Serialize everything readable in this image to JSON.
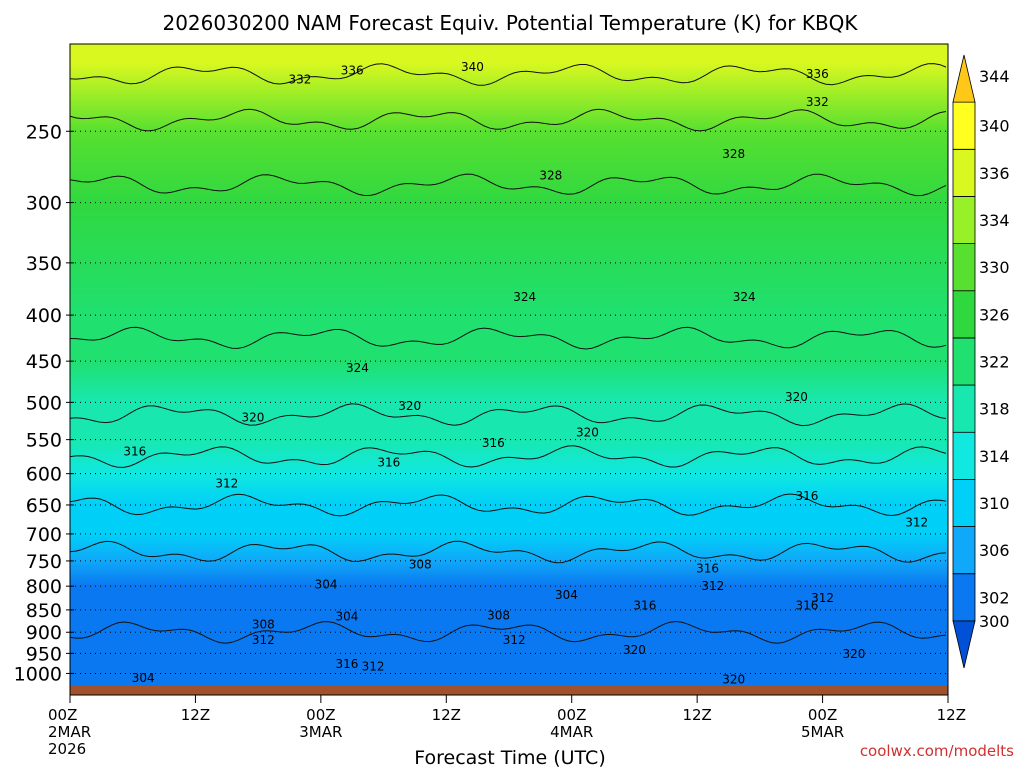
{
  "chart_data": {
    "type": "heatmap",
    "title": "2026030200 NAM Forecast Equiv. Potential Temperature (K) for KBQK",
    "xlabel": "Forecast Time (UTC)",
    "ylabel": "",
    "credit": "coolwx.com/modelts",
    "x_ticks": [
      {
        "hour": 0,
        "line1": "00Z",
        "line2": "2MAR",
        "line3": "2026"
      },
      {
        "hour": 12,
        "line1": "12Z",
        "line2": "",
        "line3": ""
      },
      {
        "hour": 24,
        "line1": "00Z",
        "line2": "3MAR",
        "line3": ""
      },
      {
        "hour": 36,
        "line1": "12Z",
        "line2": "",
        "line3": ""
      },
      {
        "hour": 48,
        "line1": "00Z",
        "line2": "4MAR",
        "line3": ""
      },
      {
        "hour": 60,
        "line1": "12Z",
        "line2": "",
        "line3": ""
      },
      {
        "hour": 72,
        "line1": "00Z",
        "line2": "5MAR",
        "line3": ""
      },
      {
        "hour": 84,
        "line1": "12Z",
        "line2": "",
        "line3": ""
      }
    ],
    "x_range_hours": [
      0,
      84
    ],
    "pressure_levels": [
      250,
      300,
      350,
      400,
      450,
      500,
      550,
      600,
      650,
      700,
      750,
      800,
      850,
      900,
      950,
      1000
    ],
    "y_range_hpa": [
      200,
      1030
    ],
    "y_scale": "log",
    "colorbar": {
      "labels": [
        300,
        302,
        306,
        310,
        314,
        318,
        322,
        326,
        330,
        334,
        336,
        340,
        344
      ],
      "colors": [
        "#0050d8",
        "#0a78f0",
        "#10a8f8",
        "#00d0f8",
        "#10e8e0",
        "#18e8b0",
        "#20e070",
        "#30d840",
        "#58e030",
        "#98f028",
        "#d8f820",
        "#ffff20",
        "#ffc818"
      ]
    },
    "field_profile_by_level": [
      {
        "hpa": 210,
        "theta_e": 337
      },
      {
        "hpa": 250,
        "theta_e": 331
      },
      {
        "hpa": 300,
        "theta_e": 327
      },
      {
        "hpa": 400,
        "theta_e": 325
      },
      {
        "hpa": 450,
        "theta_e": 323
      },
      {
        "hpa": 500,
        "theta_e": 321
      },
      {
        "hpa": 550,
        "theta_e": 318
      },
      {
        "hpa": 600,
        "theta_e": 314
      },
      {
        "hpa": 650,
        "theta_e": 312
      },
      {
        "hpa": 700,
        "theta_e": 310
      },
      {
        "hpa": 750,
        "theta_e": 307
      },
      {
        "hpa": 800,
        "theta_e": 305
      },
      {
        "hpa": 850,
        "theta_e": 305
      },
      {
        "hpa": 900,
        "theta_e": 304
      },
      {
        "hpa": 950,
        "theta_e": 304
      },
      {
        "hpa": 1000,
        "theta_e": 304
      }
    ],
    "contour_levels": [
      304,
      308,
      312,
      316,
      320,
      324,
      328,
      332,
      336,
      340
    ],
    "contour_labels": [
      {
        "text": "340",
        "hour": 38.5,
        "hpa": 212
      },
      {
        "text": "336",
        "hour": 27,
        "hpa": 214
      },
      {
        "text": "336",
        "hour": 71.5,
        "hpa": 216
      },
      {
        "text": "332",
        "hour": 22,
        "hpa": 219
      },
      {
        "text": "332",
        "hour": 71.5,
        "hpa": 232
      },
      {
        "text": "328",
        "hour": 46,
        "hpa": 280
      },
      {
        "text": "328",
        "hour": 63.5,
        "hpa": 265
      },
      {
        "text": "324",
        "hour": 43.5,
        "hpa": 382
      },
      {
        "text": "324",
        "hour": 64.5,
        "hpa": 382
      },
      {
        "text": "324",
        "hour": 27.5,
        "hpa": 458
      },
      {
        "text": "320",
        "hour": 17.5,
        "hpa": 520
      },
      {
        "text": "320",
        "hour": 32.5,
        "hpa": 505
      },
      {
        "text": "320",
        "hour": 49.5,
        "hpa": 540
      },
      {
        "text": "320",
        "hour": 69.5,
        "hpa": 493
      },
      {
        "text": "316",
        "hour": 6.2,
        "hpa": 567
      },
      {
        "text": "316",
        "hour": 30.5,
        "hpa": 583
      },
      {
        "text": "316",
        "hour": 40.5,
        "hpa": 555
      },
      {
        "text": "316",
        "hour": 70.5,
        "hpa": 635
      },
      {
        "text": "312",
        "hour": 15,
        "hpa": 615
      },
      {
        "text": "312",
        "hour": 81,
        "hpa": 680
      },
      {
        "text": "308",
        "hour": 33.5,
        "hpa": 757
      },
      {
        "text": "316",
        "hour": 61,
        "hpa": 765
      },
      {
        "text": "304",
        "hour": 24.5,
        "hpa": 797
      },
      {
        "text": "312",
        "hour": 61.5,
        "hpa": 800
      },
      {
        "text": "304",
        "hour": 47.5,
        "hpa": 818
      },
      {
        "text": "312",
        "hour": 72,
        "hpa": 825
      },
      {
        "text": "316",
        "hour": 55,
        "hpa": 840
      },
      {
        "text": "316",
        "hour": 70.5,
        "hpa": 840
      },
      {
        "text": "304",
        "hour": 26.5,
        "hpa": 865
      },
      {
        "text": "308",
        "hour": 41,
        "hpa": 862
      },
      {
        "text": "308",
        "hour": 18.5,
        "hpa": 882
      },
      {
        "text": "312",
        "hour": 18.5,
        "hpa": 918
      },
      {
        "text": "312",
        "hour": 42.5,
        "hpa": 918
      },
      {
        "text": "320",
        "hour": 54,
        "hpa": 942
      },
      {
        "text": "320",
        "hour": 75,
        "hpa": 952
      },
      {
        "text": "316",
        "hour": 26.5,
        "hpa": 976
      },
      {
        "text": "312",
        "hour": 29,
        "hpa": 983
      },
      {
        "text": "304",
        "hour": 7,
        "hpa": 1012
      },
      {
        "text": "320",
        "hour": 63.5,
        "hpa": 1015
      }
    ]
  }
}
